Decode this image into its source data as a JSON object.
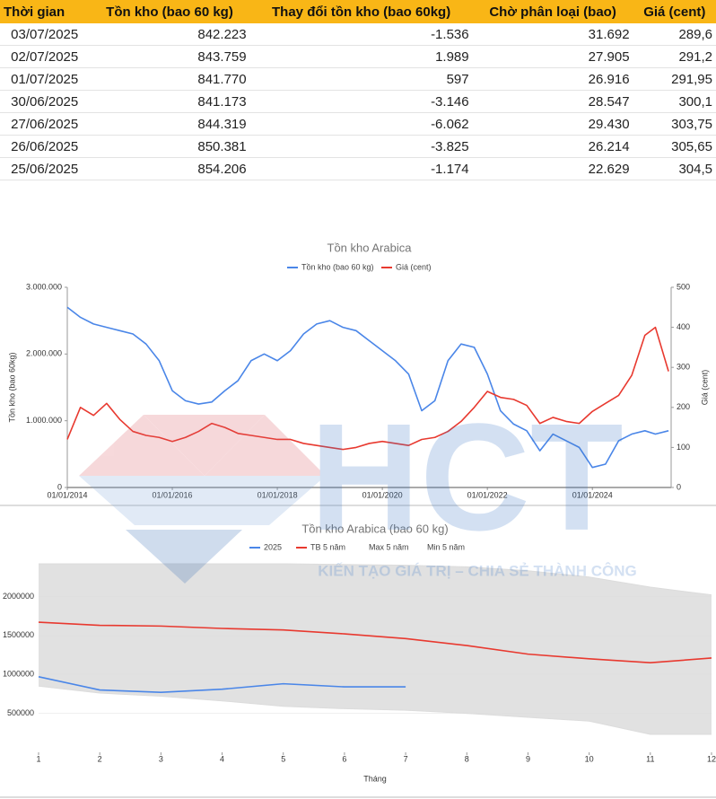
{
  "table": {
    "columns": [
      "Thời gian",
      "Tồn kho (bao 60 kg)",
      "Thay đổi tồn kho (bao 60kg)",
      "Chờ phân loại (bao)",
      "Giá (cent)"
    ],
    "rows": [
      [
        "03/07/2025",
        "842.223",
        "-1.536",
        "31.692",
        "289,6"
      ],
      [
        "02/07/2025",
        "843.759",
        "1.989",
        "27.905",
        "291,2"
      ],
      [
        "01/07/2025",
        "841.770",
        "597",
        "26.916",
        "291,95"
      ],
      [
        "30/06/2025",
        "841.173",
        "-3.146",
        "28.547",
        "300,1"
      ],
      [
        "27/06/2025",
        "844.319",
        "-6.062",
        "29.430",
        "303,75"
      ],
      [
        "26/06/2025",
        "850.381",
        "-3.825",
        "26.214",
        "305,65"
      ],
      [
        "25/06/2025",
        "854.206",
        "-1.174",
        "22.629",
        "304,5"
      ]
    ]
  },
  "watermark": {
    "logo": "HCT",
    "slogan": "KIẾN TẠO GIÁ TRỊ – CHIA SẺ THÀNH CÔNG"
  },
  "chart_data": [
    {
      "type": "line",
      "title": "Tồn kho Arabica",
      "y_label": "Tồn kho (bao 60kg)",
      "y2_label": "Giá (cent)",
      "x": [
        2014,
        2014.25,
        2014.5,
        2014.75,
        2015,
        2015.25,
        2015.5,
        2015.75,
        2016,
        2016.25,
        2016.5,
        2016.75,
        2017,
        2017.25,
        2017.5,
        2017.75,
        2018,
        2018.25,
        2018.5,
        2018.75,
        2019,
        2019.25,
        2019.5,
        2019.75,
        2020,
        2020.25,
        2020.5,
        2020.75,
        2021,
        2021.25,
        2021.5,
        2021.75,
        2022,
        2022.25,
        2022.5,
        2022.75,
        2023,
        2023.25,
        2023.5,
        2023.75,
        2024,
        2024.25,
        2024.5,
        2024.75,
        2025,
        2025.2,
        2025.45
      ],
      "xlim": [
        2014,
        2025.5
      ],
      "xticks": [
        {
          "value": 2014,
          "label": "01/01/2014"
        },
        {
          "value": 2016,
          "label": "01/01/2016"
        },
        {
          "value": 2018,
          "label": "01/01/2018"
        },
        {
          "value": 2020,
          "label": "01/01/2020"
        },
        {
          "value": 2022,
          "label": "01/01/2022"
        },
        {
          "value": 2024,
          "label": "01/01/2024"
        }
      ],
      "ylim": [
        0,
        3000000
      ],
      "yticks": [
        0,
        {
          "value": 1000000,
          "label": "1.000.000"
        },
        {
          "value": 2000000,
          "label": "2.000.000"
        },
        {
          "value": 3000000,
          "label": "3.000.000"
        }
      ],
      "y2lim": [
        0,
        500
      ],
      "y2ticks": [
        0,
        100,
        200,
        300,
        400,
        500
      ],
      "series": [
        {
          "name": "Tồn kho (bao 60 kg)",
          "color": "#4a86e8",
          "values": [
            2700000,
            2550000,
            2450000,
            2400000,
            2350000,
            2300000,
            2150000,
            1900000,
            1450000,
            1300000,
            1250000,
            1280000,
            1450000,
            1600000,
            1900000,
            2000000,
            1900000,
            2050000,
            2300000,
            2450000,
            2500000,
            2400000,
            2350000,
            2200000,
            2050000,
            1900000,
            1700000,
            1150000,
            1300000,
            1900000,
            2150000,
            2100000,
            1700000,
            1150000,
            950000,
            850000,
            550000,
            800000,
            700000,
            600000,
            300000,
            350000,
            700000,
            800000,
            850000,
            800000,
            850000
          ]
        },
        {
          "name": "Giá (cent)",
          "color": "#e8392f",
          "axis": "y2",
          "values": [
            120,
            200,
            180,
            210,
            170,
            140,
            130,
            125,
            115,
            125,
            140,
            160,
            150,
            135,
            130,
            125,
            120,
            120,
            110,
            105,
            100,
            95,
            100,
            110,
            115,
            110,
            105,
            120,
            125,
            140,
            165,
            200,
            240,
            225,
            220,
            205,
            160,
            175,
            165,
            160,
            190,
            210,
            230,
            280,
            380,
            400,
            290
          ]
        }
      ]
    },
    {
      "type": "line",
      "title": "Tồn kho Arabica (bao 60 kg)",
      "x_label": "Tháng",
      "x": [
        1,
        2,
        3,
        4,
        5,
        6,
        7,
        8,
        9,
        10,
        11,
        12
      ],
      "xlim": [
        1,
        12
      ],
      "xticks": [
        1,
        2,
        3,
        4,
        5,
        6,
        7,
        8,
        9,
        10,
        11,
        12
      ],
      "ylim": [
        0,
        2500000
      ],
      "yticks": [
        500000,
        1000000,
        1500000,
        2000000
      ],
      "series": [
        {
          "name": "2025",
          "color": "#4a86e8",
          "values": [
            970000,
            800000,
            770000,
            810000,
            880000,
            840000,
            840000,
            null,
            null,
            null,
            null,
            null
          ]
        },
        {
          "name": "TB 5 năm",
          "color": "#e8392f",
          "values": [
            1670000,
            1630000,
            1620000,
            1590000,
            1570000,
            1520000,
            1460000,
            1370000,
            1260000,
            1200000,
            1150000,
            1210000
          ]
        },
        {
          "name": "Max 5 năm",
          "color": "#dcdcdc",
          "values": [
            2420000,
            2420000,
            2420000,
            2420000,
            2420000,
            2410000,
            2400000,
            2380000,
            2330000,
            2250000,
            2120000,
            2020000
          ]
        },
        {
          "name": "Min 5 năm",
          "color": "#dcdcdc",
          "values": [
            850000,
            760000,
            720000,
            660000,
            590000,
            560000,
            540000,
            500000,
            450000,
            400000,
            230000,
            230000
          ]
        }
      ]
    }
  ]
}
